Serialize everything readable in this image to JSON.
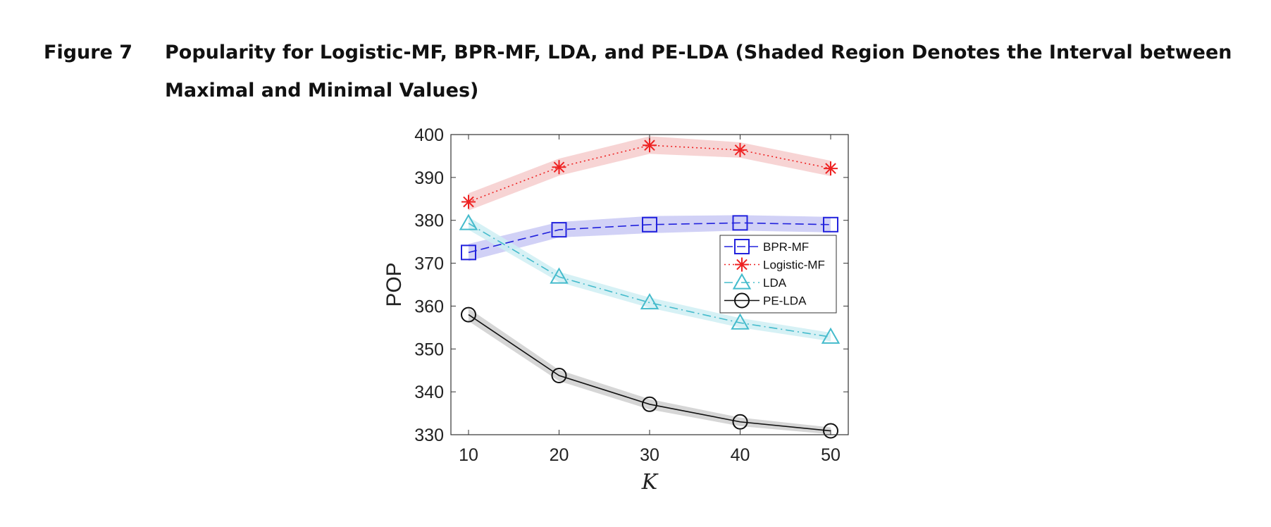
{
  "figure": {
    "label": "Figure 7",
    "title": "Popularity for Logistic-MF, BPR-MF, LDA, and PE-LDA (Shaded Region Denotes the Interval between Maximal and Minimal Values)"
  },
  "chart_data": {
    "type": "line",
    "title": "",
    "xlabel": "K",
    "ylabel": "POP",
    "x": [
      10,
      20,
      30,
      40,
      50
    ],
    "xlim": [
      10,
      50
    ],
    "ylim": [
      330,
      400
    ],
    "xticks": [
      10,
      20,
      30,
      40,
      50
    ],
    "yticks": [
      330,
      340,
      350,
      360,
      370,
      380,
      390,
      400
    ],
    "grid": false,
    "legend_position": "right",
    "series": [
      {
        "name": "BPR-MF",
        "values": [
          372.5,
          377.8,
          379.0,
          379.4,
          379.0
        ],
        "band_min": [
          370.5,
          376.0,
          377.0,
          377.6,
          377.2
        ],
        "band_max": [
          374.5,
          379.6,
          381.0,
          381.2,
          380.8
        ],
        "color": "#2222dd",
        "band_color": "#c9c9f5",
        "line_style": "dashed",
        "marker": "square"
      },
      {
        "name": "Logistic-MF",
        "values": [
          384.3,
          392.4,
          397.5,
          396.4,
          392.1
        ],
        "band_min": [
          382.3,
          390.4,
          395.5,
          394.6,
          390.3
        ],
        "band_max": [
          386.3,
          394.4,
          399.6,
          398.2,
          393.9
        ],
        "color": "#ee2222",
        "band_color": "#f6cccc",
        "line_style": "dotted",
        "marker": "asterisk"
      },
      {
        "name": "LDA",
        "values": [
          379.3,
          366.8,
          360.8,
          356.1,
          352.8
        ],
        "band_min": [
          377.8,
          365.6,
          359.6,
          355.0,
          351.8
        ],
        "band_max": [
          380.8,
          368.0,
          362.0,
          357.2,
          353.8
        ],
        "color": "#44bbcc",
        "band_color": "#cfeef3",
        "line_style": "dashdot",
        "marker": "triangle"
      },
      {
        "name": "PE-LDA",
        "values": [
          358.0,
          343.8,
          337.1,
          333.0,
          330.9
        ],
        "band_min": [
          356.5,
          342.5,
          335.9,
          332.0,
          330.1
        ],
        "band_max": [
          359.5,
          345.1,
          338.3,
          334.0,
          331.7
        ],
        "color": "#111111",
        "band_color": "#cfcfcf",
        "line_style": "solid",
        "marker": "circle"
      }
    ]
  }
}
